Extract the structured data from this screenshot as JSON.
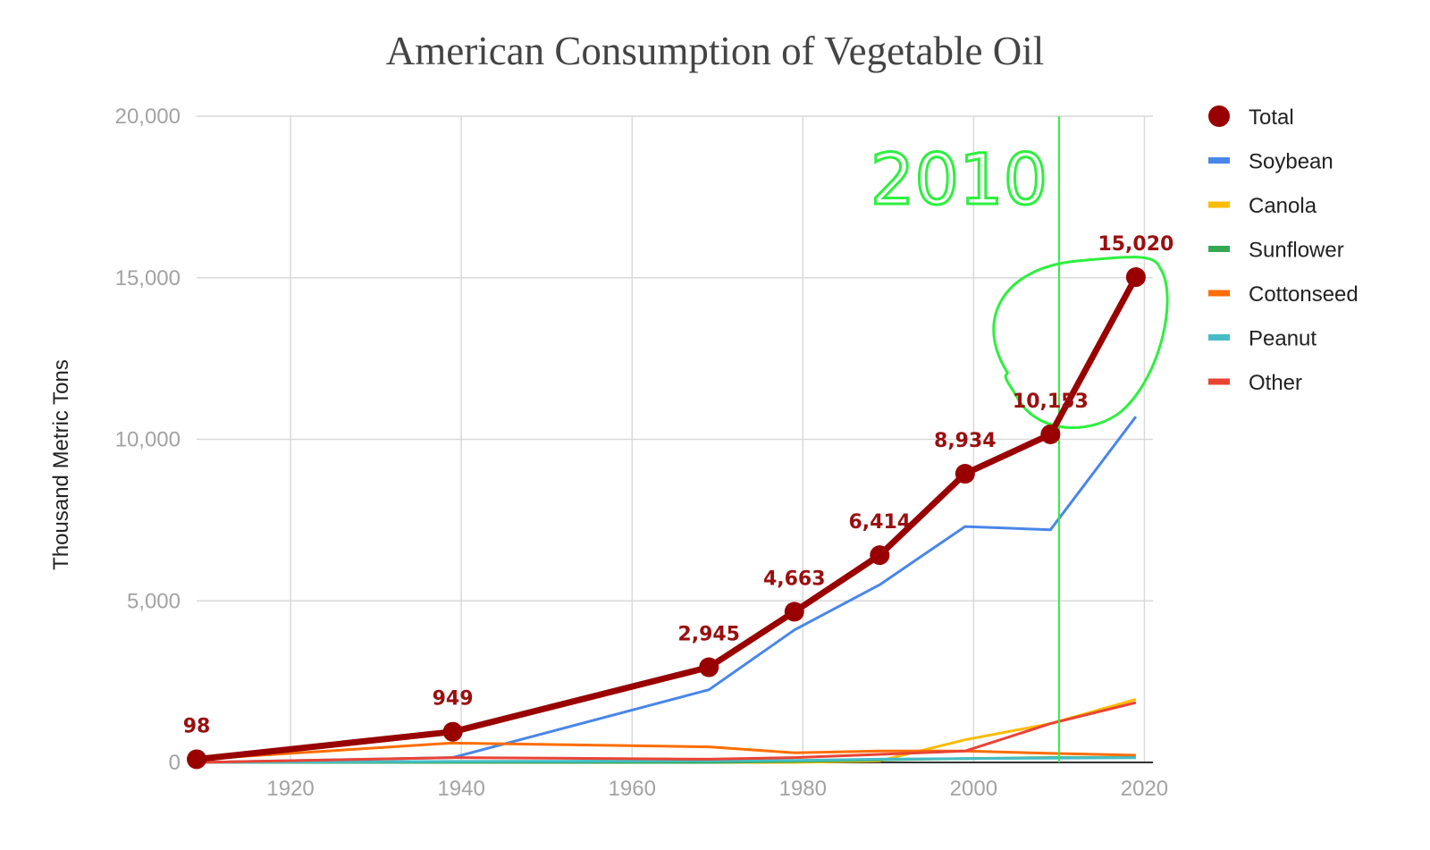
{
  "chart_data": {
    "type": "line",
    "title": "American Consumption of Vegetable Oil",
    "xlabel": "",
    "ylabel": "Thousand Metric Tons",
    "xlim": [
      1909,
      2021
    ],
    "ylim": [
      0,
      20000
    ],
    "x_ticks": [
      1920,
      1940,
      1960,
      1980,
      2000,
      2020
    ],
    "x_tick_labels": [
      "1920",
      "1940",
      "1960",
      "1980",
      "2000",
      "2020"
    ],
    "y_ticks": [
      0,
      5000,
      10000,
      15000,
      20000
    ],
    "y_tick_labels": [
      "0",
      "5,000",
      "10,000",
      "15,000",
      "20,000"
    ],
    "grid": true,
    "legend_position": "right",
    "series": [
      {
        "name": "Soybean",
        "color": "#4a86e8",
        "points": [
          [
            1909,
            0
          ],
          [
            1939,
            150
          ],
          [
            1969,
            2250
          ],
          [
            1979,
            4100
          ],
          [
            1989,
            5500
          ],
          [
            1999,
            7300
          ],
          [
            2009,
            7200
          ],
          [
            2019,
            10700
          ]
        ]
      },
      {
        "name": "Canola",
        "color": "#fbbc04",
        "points": [
          [
            1909,
            0
          ],
          [
            1939,
            0
          ],
          [
            1969,
            0
          ],
          [
            1979,
            0
          ],
          [
            1989,
            50
          ],
          [
            1999,
            700
          ],
          [
            2009,
            1200
          ],
          [
            2019,
            1950
          ]
        ]
      },
      {
        "name": "Sunflower",
        "color": "#34a853",
        "points": [
          [
            1909,
            0
          ],
          [
            1939,
            0
          ],
          [
            1969,
            0
          ],
          [
            1979,
            30
          ],
          [
            1989,
            80
          ],
          [
            1999,
            120
          ],
          [
            2009,
            150
          ],
          [
            2019,
            150
          ]
        ]
      },
      {
        "name": "Cottonseed",
        "color": "#ff6d01",
        "points": [
          [
            1909,
            98
          ],
          [
            1939,
            600
          ],
          [
            1969,
            480
          ],
          [
            1979,
            300
          ],
          [
            1989,
            350
          ],
          [
            1999,
            350
          ],
          [
            2009,
            280
          ],
          [
            2019,
            220
          ]
        ]
      },
      {
        "name": "Peanut",
        "color": "#46bdc6",
        "points": [
          [
            1909,
            0
          ],
          [
            1939,
            30
          ],
          [
            1969,
            50
          ],
          [
            1979,
            60
          ],
          [
            1989,
            100
          ],
          [
            1999,
            120
          ],
          [
            2009,
            130
          ],
          [
            2019,
            150
          ]
        ]
      },
      {
        "name": "Other",
        "color": "#ea4335",
        "points": [
          [
            1909,
            0
          ],
          [
            1939,
            150
          ],
          [
            1969,
            100
          ],
          [
            1979,
            150
          ],
          [
            1989,
            250
          ],
          [
            1999,
            350
          ],
          [
            2009,
            1200
          ],
          [
            2019,
            1850
          ]
        ]
      },
      {
        "name": "Total",
        "color": "#990000",
        "points": [
          [
            1909,
            98
          ],
          [
            1939,
            949
          ],
          [
            1969,
            2945
          ],
          [
            1979,
            4663
          ],
          [
            1989,
            6414
          ],
          [
            1999,
            8934
          ],
          [
            2009,
            10153
          ],
          [
            2019,
            15020
          ]
        ],
        "data_labels": [
          "98",
          "949",
          "2,945",
          "4,663",
          "6,414",
          "8,934",
          "10,153",
          "15,020"
        ]
      }
    ],
    "legend_order": [
      "Total",
      "Soybean",
      "Canola",
      "Sunflower",
      "Cottonseed",
      "Peanut",
      "Other"
    ],
    "annotation": {
      "text": "2010",
      "x": 2010,
      "color": "#2df03e"
    }
  }
}
